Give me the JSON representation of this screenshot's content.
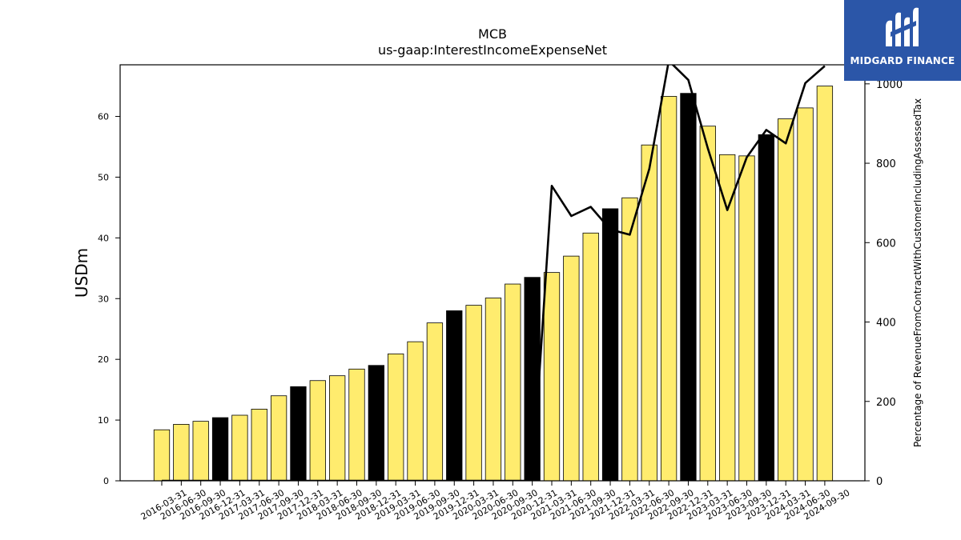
{
  "chart_data": {
    "type": "bar",
    "title": "MCB",
    "subtitle": "us-gaap:InterestIncomeExpenseNet",
    "ylabel": "USDm",
    "y2label": "Percentage of RevenueFromContractWithCustomerIncludingAssessedTax",
    "ylim": [
      0,
      68.5
    ],
    "y2lim": [
      0,
      1048
    ],
    "yticks": [
      0,
      10,
      20,
      30,
      40,
      50,
      60
    ],
    "y2ticks": [
      0,
      200,
      400,
      600,
      800,
      1000
    ],
    "categories": [
      "2016-03-31",
      "2016-06-30",
      "2016-09-30",
      "2016-12-31",
      "2017-03-31",
      "2017-06-30",
      "2017-09-30",
      "2017-12-31",
      "2018-03-31",
      "2018-06-30",
      "2018-09-30",
      "2018-12-31",
      "2019-03-31",
      "2019-06-30",
      "2019-09-30",
      "2019-12-31",
      "2020-03-31",
      "2020-06-30",
      "2020-09-30",
      "2020-12-31",
      "2021-03-31",
      "2021-06-30",
      "2021-09-30",
      "2021-12-31",
      "2022-03-31",
      "2022-06-30",
      "2022-09-30",
      "2022-12-31",
      "2023-03-31",
      "2023-06-30",
      "2023-09-30",
      "2023-12-31",
      "2024-03-31",
      "2024-06-30",
      "2024-09-30"
    ],
    "series": [
      {
        "type": "bar",
        "values": [
          8.4,
          9.3,
          9.8,
          10.4,
          10.8,
          11.8,
          14.0,
          15.5,
          16.5,
          17.3,
          18.4,
          19.0,
          20.9,
          22.9,
          26.0,
          28.0,
          28.9,
          30.1,
          32.4,
          33.5,
          34.3,
          37.0,
          40.8,
          44.8,
          46.6,
          55.3,
          63.3,
          63.8,
          58.4,
          53.7,
          53.5,
          57.0,
          59.6,
          61.4,
          65.0
        ],
        "highlight": [
          false,
          false,
          false,
          true,
          false,
          false,
          false,
          true,
          false,
          false,
          false,
          true,
          false,
          false,
          false,
          true,
          false,
          false,
          false,
          true,
          false,
          false,
          false,
          true,
          false,
          false,
          false,
          true,
          false,
          false,
          false,
          true,
          false,
          false,
          false
        ],
        "color": "#ffec6e",
        "highlight_color": "#000000"
      },
      {
        "type": "line",
        "axis": "y2",
        "values": [
          0,
          0,
          0,
          0,
          0,
          0,
          0,
          0,
          0,
          0,
          0,
          0,
          0,
          0,
          0,
          0,
          0,
          0,
          0,
          0,
          743,
          667,
          690,
          633,
          620,
          786,
          1058,
          1010,
          838,
          682,
          815,
          884,
          850,
          1002,
          1045
        ],
        "color": "#000000"
      }
    ]
  },
  "branding": {
    "logo_text": "MIDGARD FINANCE"
  }
}
